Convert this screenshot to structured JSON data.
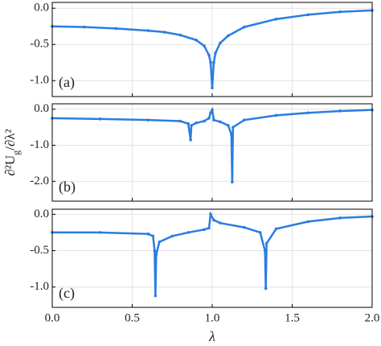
{
  "chart_data": [
    {
      "type": "line",
      "annotation": "(a)",
      "xlim": [
        0,
        2
      ],
      "xticks": [
        0,
        0.5,
        1,
        1.5,
        2
      ],
      "ylim": [
        -1.22,
        0.08
      ],
      "yticks": [
        {
          "value": 0,
          "label": "0.0"
        },
        {
          "value": -0.5,
          "label": "-0.5"
        },
        {
          "value": -1,
          "label": "-1.0"
        }
      ],
      "grid": true,
      "series": [
        {
          "color": "#2a7de1",
          "x": [
            0,
            0.2,
            0.4,
            0.6,
            0.7,
            0.8,
            0.9,
            0.95,
            0.98,
            0.99,
            1.0,
            1.01,
            1.02,
            1.05,
            1.1,
            1.2,
            1.4,
            1.6,
            1.8,
            2.0
          ],
          "values": [
            -0.25,
            -0.26,
            -0.28,
            -0.31,
            -0.33,
            -0.37,
            -0.44,
            -0.52,
            -0.65,
            -0.75,
            -1.1,
            -0.75,
            -0.62,
            -0.48,
            -0.38,
            -0.26,
            -0.15,
            -0.09,
            -0.05,
            -0.03
          ]
        }
      ]
    },
    {
      "type": "line",
      "annotation": "(b)",
      "ylabel_parts": [
        "∂²U",
        "g",
        "/∂λ²"
      ],
      "xlim": [
        0,
        2
      ],
      "xticks": [
        0,
        0.5,
        1,
        1.5,
        2
      ],
      "ylim": [
        -2.55,
        0.15
      ],
      "yticks": [
        {
          "value": 0,
          "label": "0.0"
        },
        {
          "value": -1,
          "label": "-1.0"
        },
        {
          "value": -2,
          "label": "-2.0"
        }
      ],
      "grid": true,
      "series": [
        {
          "color": "#2a7de1",
          "x": [
            0,
            0.3,
            0.6,
            0.8,
            0.85,
            0.865,
            0.87,
            0.9,
            0.95,
            0.98,
            0.99,
            1.0,
            1.01,
            1.05,
            1.1,
            1.12,
            1.125,
            1.13,
            1.2,
            1.4,
            1.6,
            1.8,
            2.0
          ],
          "values": [
            -0.25,
            -0.27,
            -0.3,
            -0.33,
            -0.4,
            -0.85,
            -0.45,
            -0.38,
            -0.33,
            -0.25,
            -0.1,
            -0.02,
            -0.3,
            -0.35,
            -0.45,
            -0.7,
            -2.02,
            -0.5,
            -0.3,
            -0.17,
            -0.1,
            -0.05,
            -0.02
          ]
        }
      ]
    },
    {
      "type": "line",
      "annotation": "(c)",
      "xlabel": "λ",
      "xlim": [
        0,
        2
      ],
      "xticks": [
        {
          "value": 0,
          "label": "0.0"
        },
        {
          "value": 0.5,
          "label": "0.5"
        },
        {
          "value": 1,
          "label": "1.0"
        },
        {
          "value": 1.5,
          "label": "1.5"
        },
        {
          "value": 2,
          "label": "2.0"
        }
      ],
      "ylim": [
        -1.28,
        0.07
      ],
      "yticks": [
        {
          "value": 0,
          "label": "0.0"
        },
        {
          "value": -0.5,
          "label": "-0.5"
        },
        {
          "value": -1,
          "label": "-1.0"
        }
      ],
      "grid": true,
      "series": [
        {
          "color": "#2a7de1",
          "x": [
            0,
            0.3,
            0.6,
            0.63,
            0.64,
            0.645,
            0.65,
            0.67,
            0.75,
            0.85,
            0.95,
            0.98,
            0.99,
            1.01,
            1.05,
            1.2,
            1.3,
            1.33,
            1.335,
            1.34,
            1.4,
            1.6,
            1.8,
            2.0
          ],
          "values": [
            -0.25,
            -0.25,
            -0.27,
            -0.3,
            -0.5,
            -1.12,
            -0.55,
            -0.38,
            -0.3,
            -0.25,
            -0.21,
            -0.19,
            0,
            -0.08,
            -0.12,
            -0.18,
            -0.25,
            -0.5,
            -1.02,
            -0.4,
            -0.2,
            -0.1,
            -0.05,
            -0.03
          ]
        }
      ]
    }
  ]
}
